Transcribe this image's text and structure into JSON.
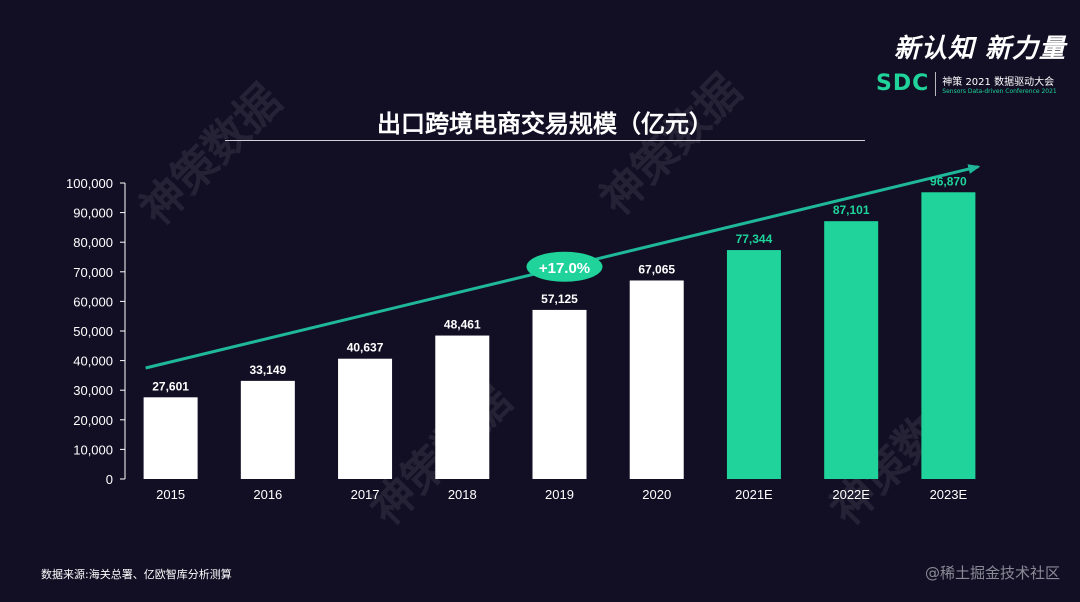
{
  "header": {
    "title": "出口跨境电商交易规模（亿元）"
  },
  "brand": {
    "slogan": "新认知 新力量",
    "logo": "SDC",
    "event": "神策 2021 数据驱动大会",
    "conference": "Sensors Data-driven Conference 2021"
  },
  "watermark": {
    "text": "神策数据"
  },
  "footer": {
    "source": "数据来源:海关总署、亿欧智库分析测算",
    "credit": "@稀土掘金技术社区"
  },
  "colors": {
    "background": "#120f24",
    "actual_bar": "#ffffff",
    "estimate_bar": "#1fd39b",
    "trend": "#1fb89a",
    "axis_text": "#ffffff"
  },
  "chart_data": {
    "type": "bar",
    "title": "出口跨境电商交易规模（亿元）",
    "xlabel": "",
    "ylabel": "",
    "ylim": [
      0,
      100000
    ],
    "ytick_step": 10000,
    "ytick_labels": [
      "0",
      "10,000",
      "20,000",
      "30,000",
      "40,000",
      "50,000",
      "60,000",
      "70,000",
      "80,000",
      "90,000",
      "100,000"
    ],
    "categories": [
      "2015",
      "2016",
      "2017",
      "2018",
      "2019",
      "2020",
      "2021E",
      "2022E",
      "2023E"
    ],
    "values": [
      27601,
      33149,
      40637,
      48461,
      57125,
      67065,
      77344,
      87101,
      96870
    ],
    "value_labels": [
      "27,601",
      "33,149",
      "40,637",
      "48,461",
      "57,125",
      "67,065",
      "77,344",
      "87,101",
      "96,870"
    ],
    "estimated": [
      false,
      false,
      false,
      false,
      false,
      false,
      true,
      true,
      true
    ],
    "growth_annotation": "+17.0%"
  }
}
